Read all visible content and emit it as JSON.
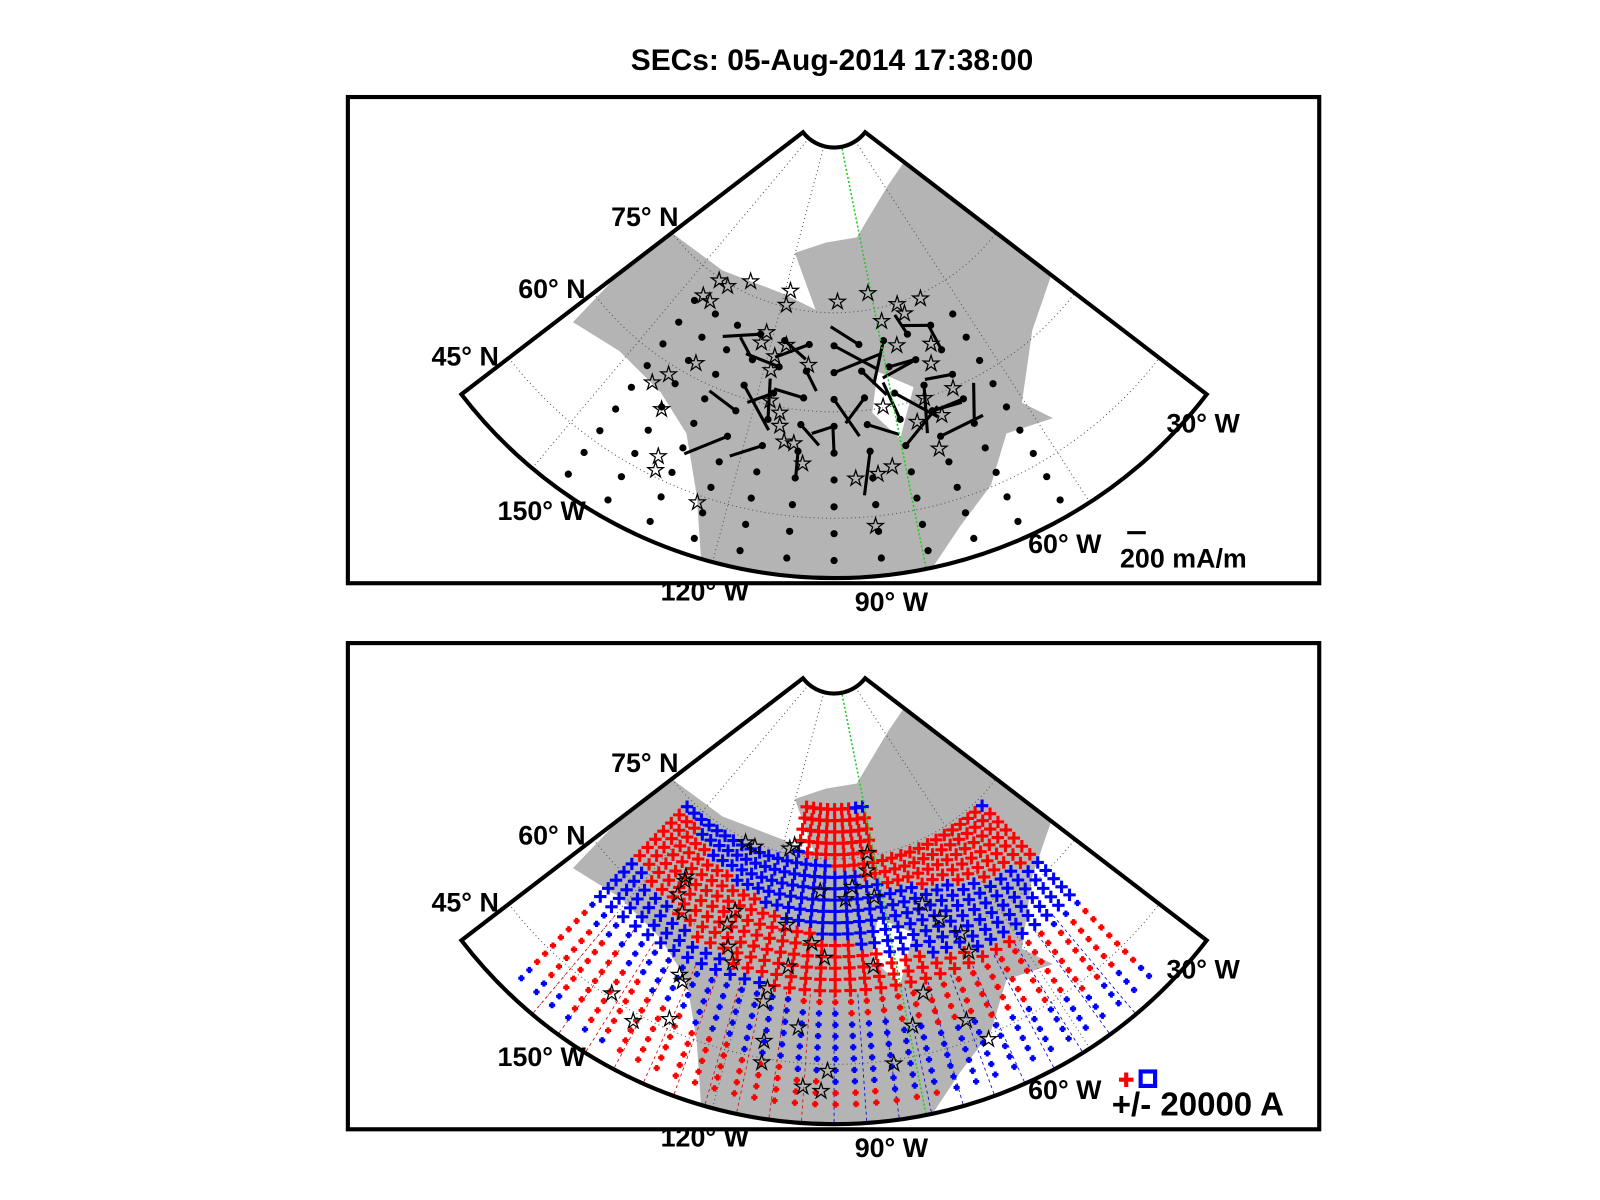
{
  "title": "SECs: 05-Aug-2014 17:38:00",
  "panels": [
    {
      "grid_labels": [
        "75° N",
        "60° N",
        "45° N",
        "30° W",
        "150° W",
        "120° W",
        "90° W",
        "60° W"
      ],
      "scale_label": "200 mA/m"
    },
    {
      "grid_labels": [
        "75° N",
        "60° N",
        "45° N",
        "30° W",
        "150° W",
        "120° W",
        "90° W",
        "60° W"
      ],
      "scale_label": "+/- 20000 A"
    }
  ]
}
